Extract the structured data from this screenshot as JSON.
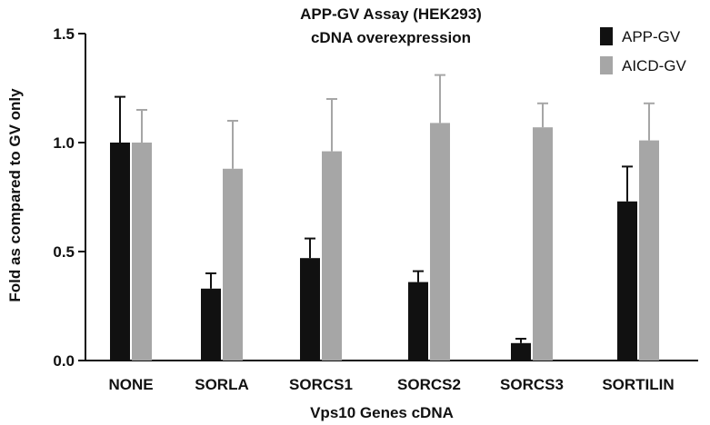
{
  "chart_data": {
    "type": "bar",
    "title": "APP-GV Assay (HEK293)",
    "subtitle": "cDNA overexpression",
    "xlabel": "Vps10 Genes cDNA",
    "ylabel": "Fold as compared to GV only",
    "ylim": [
      0,
      1.5
    ],
    "yticks": [
      "0.0",
      "0.5",
      "1.0",
      "1.5"
    ],
    "grid": false,
    "legend": "top-right",
    "categories": [
      "NONE",
      "SORLA",
      "SORCS1",
      "SORCS2",
      "SORCS3",
      "SORTILIN"
    ],
    "series": [
      {
        "name": "APP-GV",
        "color": "#111111",
        "values": [
          1.0,
          0.33,
          0.47,
          0.36,
          0.08,
          0.73
        ],
        "errors": [
          0.21,
          0.07,
          0.09,
          0.05,
          0.02,
          0.16
        ]
      },
      {
        "name": "AICD-GV",
        "color": "#a6a6a6",
        "values": [
          1.0,
          0.88,
          0.96,
          1.09,
          1.07,
          1.01
        ],
        "errors": [
          0.15,
          0.22,
          0.24,
          0.22,
          0.11,
          0.17
        ]
      }
    ]
  }
}
